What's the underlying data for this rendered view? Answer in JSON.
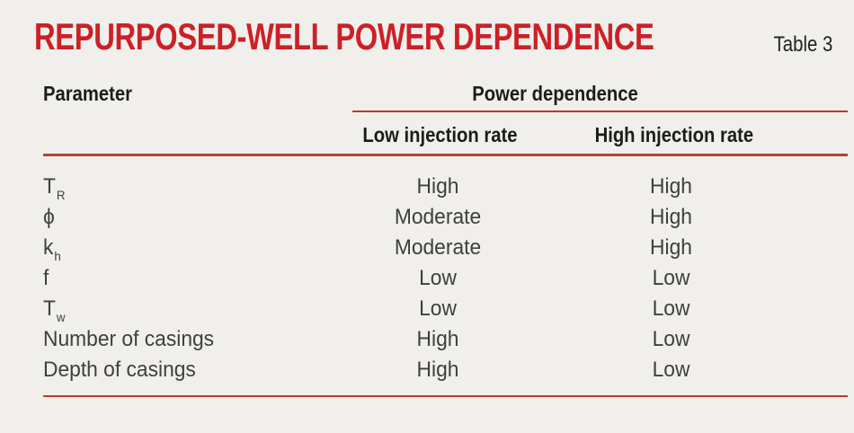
{
  "title": "REPURPOSED-WELL POWER DEPENDENCE",
  "table_label": "Table 3",
  "colors": {
    "background": "#f0efeb",
    "title_red": "#cd2026",
    "rule_red": "#c4372b",
    "header_text": "#1c1c1c",
    "body_text": "#3f3f3f"
  },
  "table": {
    "param_header": "Parameter",
    "group_header": "Power dependence",
    "col_low_header": "Low injection rate",
    "col_high_header": "High injection rate",
    "rows": [
      {
        "base": "T",
        "sub": "R",
        "low": "High",
        "high": "High"
      },
      {
        "base": "ϕ",
        "sub": "",
        "low": "Moderate",
        "high": "High"
      },
      {
        "base": "k",
        "sub": "h",
        "low": "Moderate",
        "high": "High"
      },
      {
        "base": "f",
        "sub": "",
        "low": "Low",
        "high": "Low"
      },
      {
        "base": "T",
        "sub": "w",
        "low": "Low",
        "high": "Low"
      },
      {
        "base": "Number of casings",
        "sub": "",
        "low": "High",
        "high": "Low"
      },
      {
        "base": "Depth of casings",
        "sub": "",
        "low": "High",
        "high": "Low"
      }
    ]
  },
  "chart_data": {
    "type": "table",
    "title": "REPURPOSED-WELL POWER DEPENDENCE",
    "caption_label": "Table 3",
    "columns": [
      "Parameter",
      "Low injection rate",
      "High injection rate"
    ],
    "column_group": {
      "label": "Power dependence",
      "spans": [
        "Low injection rate",
        "High injection rate"
      ]
    },
    "rows": [
      [
        "T_R",
        "High",
        "High"
      ],
      [
        "ϕ",
        "Moderate",
        "High"
      ],
      [
        "k_h",
        "Moderate",
        "High"
      ],
      [
        "f",
        "Low",
        "Low"
      ],
      [
        "T_w",
        "Low",
        "Low"
      ],
      [
        "Number of casings",
        "High",
        "Low"
      ],
      [
        "Depth of casings",
        "High",
        "Low"
      ]
    ]
  }
}
